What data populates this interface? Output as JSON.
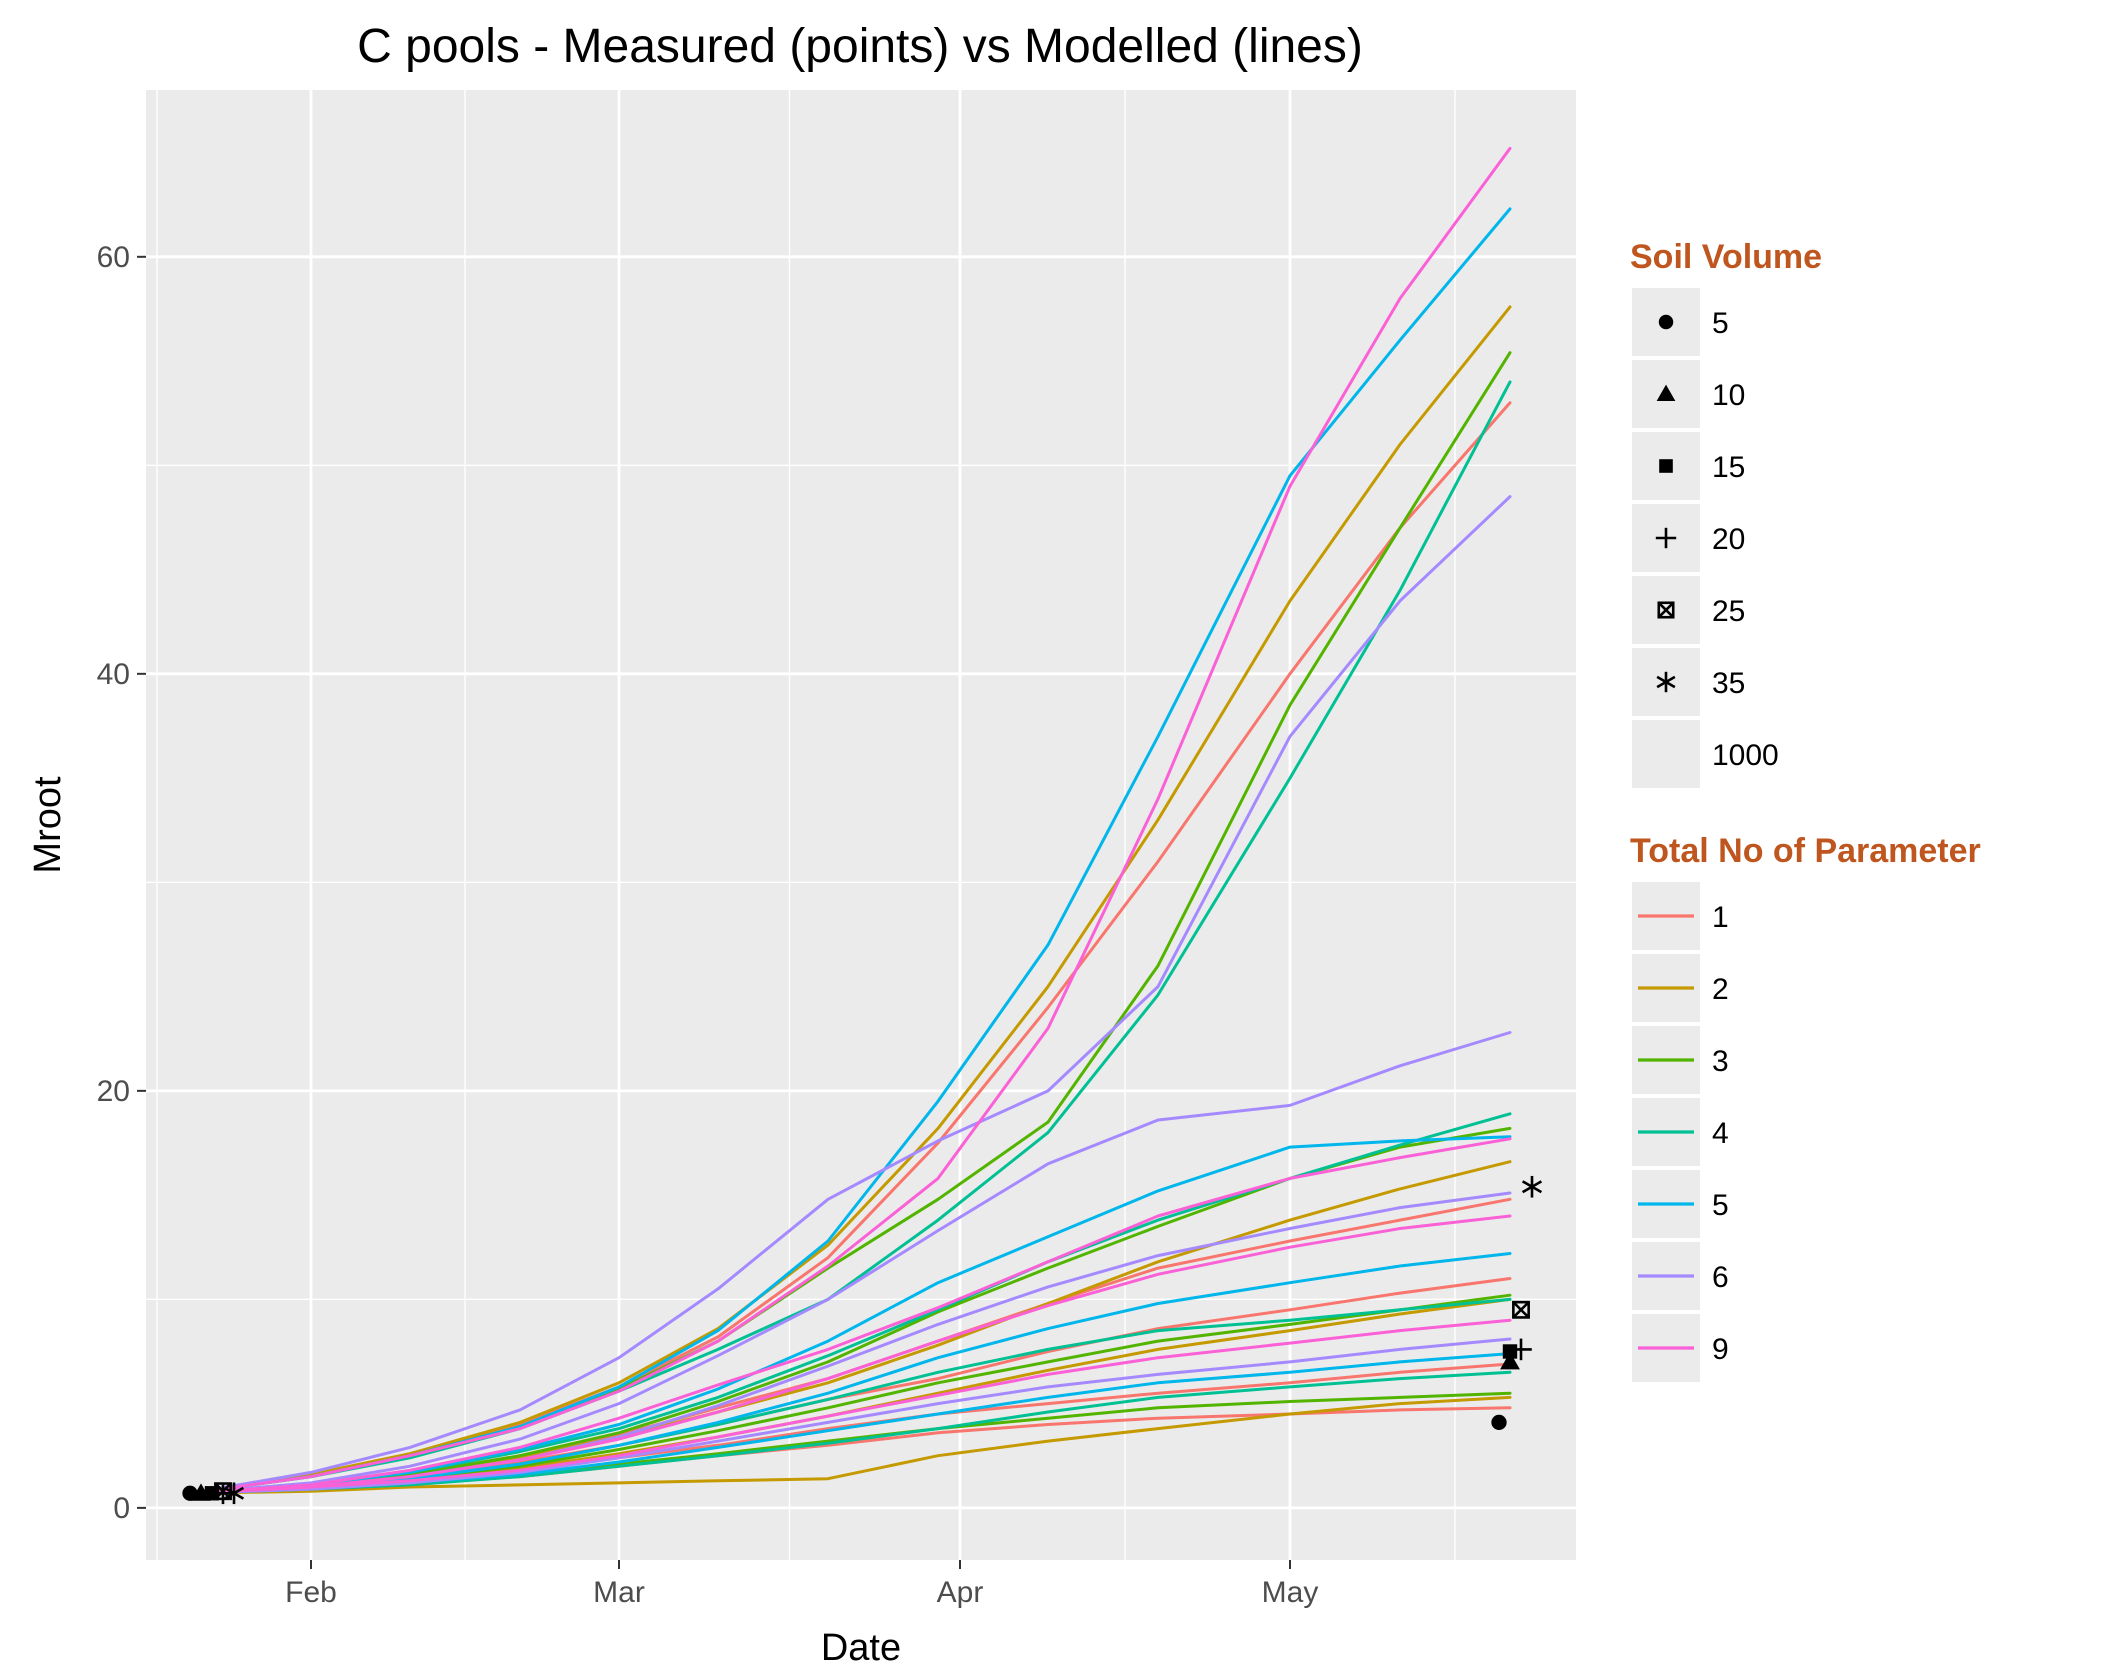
{
  "chart_data": {
    "type": "line",
    "title": "C pools - Measured (points) vs Modelled (lines)",
    "xlabel": "Date",
    "ylabel": "Mroot",
    "x_axis_type": "date",
    "xlim": [
      "2015-01-17",
      "2015-05-27"
    ],
    "ylim": [
      -2.5,
      68
    ],
    "x_ticks": [
      {
        "date": "2015-02-01",
        "label": "Feb"
      },
      {
        "date": "2015-03-01",
        "label": "Mar"
      },
      {
        "date": "2015-04-01",
        "label": "Apr"
      },
      {
        "date": "2015-05-01",
        "label": "May"
      }
    ],
    "y_ticks": [
      0,
      20,
      40,
      60
    ],
    "grid": true,
    "background": "#ebebeb",
    "legend_title_color": "#c0561f",
    "legends": [
      {
        "title": "Soil Volume",
        "placement": "right-top",
        "entries": [
          {
            "label": "5",
            "shape": "circle"
          },
          {
            "label": "10",
            "shape": "triangle"
          },
          {
            "label": "15",
            "shape": "square"
          },
          {
            "label": "20",
            "shape": "plus"
          },
          {
            "label": "25",
            "shape": "boxed-x"
          },
          {
            "label": "35",
            "shape": "asterisk"
          },
          {
            "label": "1000",
            "shape": "none"
          }
        ]
      },
      {
        "title": "Total No of Parameter",
        "placement": "right-bottom",
        "entries": [
          {
            "label": "1",
            "color": "#f8766d"
          },
          {
            "label": "2",
            "color": "#c49a00"
          },
          {
            "label": "3",
            "color": "#53b400"
          },
          {
            "label": "4",
            "color": "#00c094"
          },
          {
            "label": "5",
            "color": "#00b6eb"
          },
          {
            "label": "6",
            "color": "#a58aff"
          },
          {
            "label": "9",
            "color": "#fb61d7"
          }
        ]
      }
    ],
    "x_dates": [
      "2015-01-21",
      "2015-02-01",
      "2015-02-10",
      "2015-02-20",
      "2015-03-01",
      "2015-03-10",
      "2015-03-20",
      "2015-03-30",
      "2015-04-09",
      "2015-04-19",
      "2015-05-01",
      "2015-05-11",
      "2015-05-21"
    ],
    "series": [
      {
        "param": "1",
        "values": [
          0.7,
          1.0,
          1.2,
          1.5,
          2.0,
          2.5,
          3.0,
          3.6,
          4.0,
          4.3,
          4.5,
          4.7,
          4.8
        ]
      },
      {
        "param": "1",
        "values": [
          0.7,
          1.0,
          1.3,
          1.8,
          2.4,
          3.0,
          3.8,
          4.5,
          5.0,
          5.5,
          6.0,
          6.5,
          6.9
        ]
      },
      {
        "param": "1",
        "values": [
          0.7,
          1.1,
          1.5,
          2.2,
          3.0,
          4.0,
          5.2,
          6.2,
          7.5,
          8.6,
          9.5,
          10.3,
          11.0
        ]
      },
      {
        "param": "1",
        "values": [
          0.7,
          1.1,
          1.6,
          2.5,
          3.5,
          4.8,
          6.2,
          8.0,
          9.8,
          11.5,
          12.8,
          13.8,
          14.8
        ]
      },
      {
        "param": "1",
        "values": [
          0.7,
          1.6,
          2.6,
          4.0,
          5.8,
          8.2,
          12.0,
          17.5,
          24.0,
          31.0,
          40.0,
          47.0,
          53.0
        ]
      },
      {
        "param": "2",
        "values": [
          0.7,
          0.8,
          1.0,
          1.1,
          1.2,
          1.3,
          1.4,
          2.5,
          3.2,
          3.8,
          4.5,
          5.0,
          5.3
        ]
      },
      {
        "param": "2",
        "values": [
          0.7,
          1.0,
          1.3,
          1.9,
          2.6,
          3.4,
          4.4,
          5.5,
          6.6,
          7.6,
          8.5,
          9.3,
          10.0
        ]
      },
      {
        "param": "2",
        "values": [
          0.7,
          1.1,
          1.6,
          2.4,
          3.4,
          4.6,
          6.0,
          7.8,
          9.8,
          11.8,
          13.8,
          15.3,
          16.6
        ]
      },
      {
        "param": "2",
        "values": [
          0.7,
          1.6,
          2.6,
          4.1,
          6.0,
          8.6,
          12.6,
          18.2,
          25.0,
          33.0,
          43.5,
          51.0,
          57.6
        ]
      },
      {
        "param": "3",
        "values": [
          0.7,
          1.0,
          1.2,
          1.6,
          2.1,
          2.6,
          3.2,
          3.8,
          4.3,
          4.8,
          5.1,
          5.3,
          5.5
        ]
      },
      {
        "param": "3",
        "values": [
          0.7,
          1.0,
          1.4,
          2.0,
          2.8,
          3.7,
          4.8,
          6.0,
          7.0,
          8.0,
          8.8,
          9.5,
          10.2
        ]
      },
      {
        "param": "3",
        "values": [
          0.7,
          1.1,
          1.6,
          2.5,
          3.6,
          5.1,
          7.0,
          9.4,
          11.5,
          13.5,
          15.8,
          17.3,
          18.2
        ]
      },
      {
        "param": "3",
        "values": [
          0.7,
          1.5,
          2.5,
          3.9,
          5.7,
          8.0,
          11.5,
          14.8,
          18.5,
          26.0,
          38.5,
          47.0,
          55.4
        ]
      },
      {
        "param": "4",
        "values": [
          0.7,
          0.9,
          1.1,
          1.5,
          2.0,
          2.5,
          3.1,
          3.8,
          4.6,
          5.3,
          5.8,
          6.2,
          6.5
        ]
      },
      {
        "param": "4",
        "values": [
          0.7,
          1.0,
          1.4,
          2.1,
          3.0,
          4.0,
          5.2,
          6.5,
          7.6,
          8.5,
          9.0,
          9.5,
          10.0
        ]
      },
      {
        "param": "4",
        "values": [
          0.7,
          1.1,
          1.7,
          2.7,
          3.8,
          5.3,
          7.3,
          9.5,
          11.8,
          13.8,
          15.8,
          17.4,
          18.9
        ]
      },
      {
        "param": "4",
        "values": [
          0.7,
          1.5,
          2.4,
          3.8,
          5.6,
          7.6,
          10.0,
          13.8,
          18.0,
          24.6,
          35.0,
          44.0,
          54.0
        ]
      },
      {
        "param": "5",
        "values": [
          0.7,
          0.9,
          1.2,
          1.6,
          2.2,
          2.9,
          3.7,
          4.5,
          5.3,
          6.0,
          6.5,
          7.0,
          7.4
        ]
      },
      {
        "param": "5",
        "values": [
          0.7,
          1.0,
          1.4,
          2.1,
          3.0,
          4.1,
          5.5,
          7.2,
          8.6,
          9.8,
          10.8,
          11.6,
          12.2
        ]
      },
      {
        "param": "5",
        "values": [
          0.7,
          1.1,
          1.7,
          2.8,
          4.0,
          5.7,
          8.0,
          10.8,
          13.0,
          15.2,
          17.3,
          17.6,
          17.8
        ]
      },
      {
        "param": "5",
        "values": [
          0.7,
          1.5,
          2.5,
          3.9,
          5.8,
          8.5,
          12.8,
          19.5,
          27.0,
          37.0,
          49.5,
          56.0,
          62.3
        ]
      },
      {
        "param": "6",
        "values": [
          0.7,
          0.9,
          1.2,
          1.7,
          2.4,
          3.2,
          4.1,
          5.0,
          5.8,
          6.4,
          7.0,
          7.6,
          8.1
        ]
      },
      {
        "param": "6",
        "values": [
          0.7,
          1.0,
          1.5,
          2.3,
          3.4,
          4.9,
          6.8,
          8.8,
          10.6,
          12.1,
          13.4,
          14.4,
          15.1
        ]
      },
      {
        "param": "6",
        "values": [
          0.7,
          1.2,
          2.0,
          3.3,
          5.0,
          7.3,
          10.0,
          13.3,
          16.5,
          18.6,
          19.3,
          21.2,
          22.8
        ]
      },
      {
        "param": "6",
        "values": [
          0.7,
          1.7,
          2.9,
          4.7,
          7.2,
          10.5,
          14.8,
          17.6,
          20.0,
          25.0,
          37.0,
          43.5,
          48.5
        ]
      },
      {
        "param": "9",
        "values": [
          0.7,
          1.0,
          1.3,
          1.8,
          2.5,
          3.4,
          4.4,
          5.4,
          6.4,
          7.2,
          7.9,
          8.5,
          9.0
        ]
      },
      {
        "param": "9",
        "values": [
          0.7,
          1.0,
          1.5,
          2.3,
          3.3,
          4.6,
          6.2,
          8.0,
          9.7,
          11.2,
          12.5,
          13.4,
          14.0
        ]
      },
      {
        "param": "9",
        "values": [
          0.7,
          1.1,
          1.8,
          2.9,
          4.3,
          5.9,
          7.6,
          9.6,
          11.8,
          14.0,
          15.8,
          16.8,
          17.7
        ]
      },
      {
        "param": "9",
        "values": [
          0.7,
          1.5,
          2.5,
          3.8,
          5.6,
          8.0,
          11.6,
          15.8,
          23.0,
          34.0,
          49.0,
          58.0,
          65.2
        ]
      }
    ],
    "measured_points": [
      {
        "date": "2015-01-21",
        "value": 0.7,
        "shape": "circle"
      },
      {
        "date": "2015-01-22",
        "value": 0.7,
        "shape": "triangle"
      },
      {
        "date": "2015-01-23",
        "value": 0.7,
        "shape": "square"
      },
      {
        "date": "2015-01-24",
        "value": 0.7,
        "shape": "plus"
      },
      {
        "date": "2015-01-24",
        "value": 0.8,
        "shape": "boxed-x"
      },
      {
        "date": "2015-01-25",
        "value": 0.7,
        "shape": "asterisk"
      },
      {
        "date": "2015-05-20",
        "value": 4.1,
        "shape": "circle"
      },
      {
        "date": "2015-05-21",
        "value": 7.0,
        "shape": "triangle"
      },
      {
        "date": "2015-05-21",
        "value": 7.5,
        "shape": "square"
      },
      {
        "date": "2015-05-22",
        "value": 7.6,
        "shape": "plus"
      },
      {
        "date": "2015-05-22",
        "value": 9.5,
        "shape": "boxed-x"
      },
      {
        "date": "2015-05-23",
        "value": 15.4,
        "shape": "asterisk"
      }
    ]
  }
}
